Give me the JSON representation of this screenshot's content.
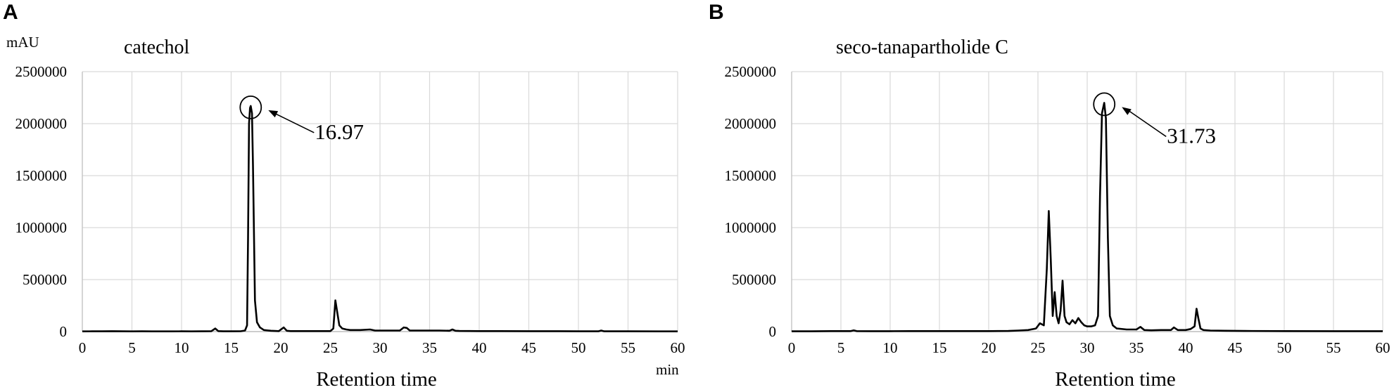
{
  "chart_data": [
    {
      "type": "line",
      "panel": "A",
      "title": "catechol",
      "ylabel": "mAU",
      "xlabel": "Retention time",
      "xunit": "min",
      "xlim": [
        0,
        60
      ],
      "ylim": [
        0,
        2500000
      ],
      "x_ticks": [
        "0",
        "5",
        "10",
        "15",
        "20",
        "25",
        "30",
        "35",
        "40",
        "45",
        "50",
        "55",
        "60"
      ],
      "y_ticks": [
        "0",
        "500000",
        "1000000",
        "1500000",
        "2000000",
        "2500000"
      ],
      "grid": true,
      "series": [
        {
          "x": [
            0,
            1,
            2,
            3,
            4,
            5,
            6,
            7,
            8,
            9,
            10,
            11,
            12,
            13,
            13.4,
            13.7,
            14.2,
            15,
            16,
            16.4,
            16.6,
            16.7,
            16.8,
            16.9,
            16.97,
            17.1,
            17.2,
            17.4,
            17.6,
            17.9,
            18.3,
            19,
            19.8,
            20.3,
            20.6,
            21,
            22,
            23,
            24,
            25,
            25.3,
            25.5,
            25.7,
            25.9,
            26.2,
            26.6,
            27,
            28,
            29,
            29.5,
            30,
            31,
            32,
            32.4,
            32.7,
            33,
            33.5,
            34,
            35,
            36,
            37,
            37.3,
            37.6,
            38,
            40,
            42,
            45,
            48,
            50,
            52,
            52.3,
            52.6,
            55,
            58,
            60
          ],
          "y": [
            2000,
            3000,
            3000,
            4000,
            3000,
            2000,
            3000,
            2000,
            2000,
            2000,
            3000,
            2000,
            3000,
            4000,
            30000,
            5000,
            3000,
            3000,
            4000,
            10000,
            60000,
            900000,
            2000000,
            2150000,
            2170000,
            2100000,
            1600000,
            300000,
            90000,
            40000,
            15000,
            8000,
            5000,
            40000,
            8000,
            5000,
            5000,
            5000,
            5000,
            5000,
            30000,
            300000,
            180000,
            60000,
            30000,
            20000,
            15000,
            15000,
            20000,
            10000,
            10000,
            10000,
            10000,
            40000,
            35000,
            10000,
            10000,
            10000,
            10000,
            10000,
            8000,
            20000,
            8000,
            6000,
            5000,
            5000,
            4000,
            4000,
            3000,
            3000,
            10000,
            3000,
            3000,
            2000,
            2000
          ]
        }
      ],
      "annotations": [
        {
          "text": "16.97",
          "x": 16.97,
          "y": 2170000
        }
      ]
    },
    {
      "type": "line",
      "panel": "B",
      "title": "seco-tanapartholide C",
      "xlabel": "Retention time",
      "xlim": [
        0,
        60
      ],
      "ylim": [
        0,
        2500000
      ],
      "x_ticks": [
        "0",
        "5",
        "10",
        "15",
        "20",
        "25",
        "30",
        "35",
        "40",
        "45",
        "50",
        "55",
        "60"
      ],
      "y_ticks": [
        "0",
        "500000",
        "1000000",
        "1500000",
        "2000000",
        "2500000"
      ],
      "grid": true,
      "series": [
        {
          "x": [
            0,
            2,
            4,
            6,
            6.3,
            6.6,
            8,
            10,
            12,
            14,
            16,
            18,
            20,
            22,
            23,
            24,
            24.8,
            25.2,
            25.6,
            25.9,
            26.1,
            26.3,
            26.5,
            26.7,
            26.9,
            27.1,
            27.3,
            27.5,
            27.7,
            27.9,
            28.2,
            28.5,
            28.8,
            29.1,
            29.4,
            29.7,
            30,
            30.4,
            30.8,
            31.1,
            31.3,
            31.5,
            31.73,
            31.9,
            32.1,
            32.3,
            32.6,
            33,
            34,
            35,
            35.4,
            35.8,
            36.5,
            37.5,
            38.5,
            38.8,
            39.2,
            40,
            40.5,
            40.9,
            41.1,
            41.3,
            41.5,
            41.8,
            42.5,
            44,
            46,
            50,
            55,
            60
          ],
          "y": [
            3000,
            3000,
            5000,
            5000,
            12000,
            5000,
            4000,
            4000,
            5000,
            5000,
            5000,
            5000,
            5000,
            6000,
            10000,
            15000,
            30000,
            80000,
            60000,
            600000,
            1160000,
            700000,
            150000,
            380000,
            150000,
            80000,
            200000,
            490000,
            150000,
            90000,
            70000,
            110000,
            80000,
            130000,
            90000,
            60000,
            50000,
            50000,
            60000,
            150000,
            1300000,
            2100000,
            2200000,
            2050000,
            900000,
            150000,
            60000,
            30000,
            20000,
            20000,
            45000,
            15000,
            12000,
            15000,
            15000,
            40000,
            15000,
            15000,
            25000,
            50000,
            220000,
            120000,
            30000,
            15000,
            10000,
            8000,
            6000,
            5000,
            4000,
            4000
          ]
        }
      ],
      "annotations": [
        {
          "text": "31.73",
          "x": 31.73,
          "y": 2200000
        }
      ]
    }
  ]
}
